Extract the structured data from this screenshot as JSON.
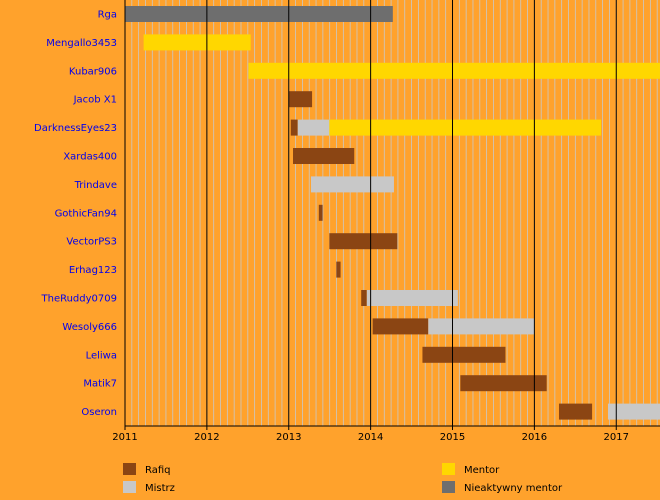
{
  "chart_data": {
    "type": "timeline",
    "title": "",
    "xlabel": "",
    "ylabel": "",
    "x_range": [
      "2011-01-01",
      "2017-07-15"
    ],
    "x_ticks": [
      "2011",
      "2012",
      "2013",
      "2014",
      "2015",
      "2016",
      "2017"
    ],
    "grid": "vertical, monthly minor lines and yearly major lines",
    "legend_position": "bottom",
    "roles": [
      {
        "key": "rafiq",
        "label": "Rafiq",
        "color": "#8B4513"
      },
      {
        "key": "mistrz",
        "label": "Mistrz",
        "color": "#C8C8C8"
      },
      {
        "key": "mentor",
        "label": "Mentor",
        "color": "#FFD700"
      },
      {
        "key": "inactive",
        "label": "Nieaktywny mentor",
        "color": "#6E6E6E"
      }
    ],
    "rows": [
      {
        "name": "Rga",
        "segments": [
          {
            "role": "inactive",
            "start": "2011-01-01",
            "end": "2014-04-10"
          }
        ]
      },
      {
        "name": "Mengallo3453",
        "segments": [
          {
            "role": "mentor",
            "start": "2011-03-25",
            "end": "2012-07-15"
          }
        ]
      },
      {
        "name": "Kubar906",
        "segments": [
          {
            "role": "mentor",
            "start": "2012-07-05",
            "end": "2017-07-15"
          }
        ]
      },
      {
        "name": "Jacob X1",
        "segments": [
          {
            "role": "rafiq",
            "start": "2013-01-01",
            "end": "2013-04-15"
          }
        ]
      },
      {
        "name": "DarknessEyes23",
        "segments": [
          {
            "role": "rafiq",
            "start": "2013-01-10",
            "end": "2013-02-10"
          },
          {
            "role": "mistrz",
            "start": "2013-02-10",
            "end": "2013-07-01"
          },
          {
            "role": "mentor",
            "start": "2013-07-01",
            "end": "2016-10-25"
          }
        ]
      },
      {
        "name": "Xardas400",
        "segments": [
          {
            "role": "rafiq",
            "start": "2013-01-20",
            "end": "2013-10-20"
          }
        ]
      },
      {
        "name": "Trindave",
        "segments": [
          {
            "role": "mistrz",
            "start": "2013-04-10",
            "end": "2014-04-15"
          }
        ]
      },
      {
        "name": "GothicFan94",
        "segments": [
          {
            "role": "rafiq",
            "start": "2013-05-15",
            "end": "2013-06-01"
          }
        ]
      },
      {
        "name": "VectorPS3",
        "segments": [
          {
            "role": "rafiq",
            "start": "2013-07-01",
            "end": "2014-04-30"
          }
        ]
      },
      {
        "name": "Erhag123",
        "segments": [
          {
            "role": "rafiq",
            "start": "2013-08-01",
            "end": "2013-08-20"
          }
        ]
      },
      {
        "name": "TheRuddy0709",
        "segments": [
          {
            "role": "rafiq",
            "start": "2013-11-20",
            "end": "2013-12-15"
          },
          {
            "role": "mistrz",
            "start": "2013-12-15",
            "end": "2015-01-25"
          }
        ]
      },
      {
        "name": "Wesoly666",
        "segments": [
          {
            "role": "rafiq",
            "start": "2014-01-10",
            "end": "2014-09-15"
          },
          {
            "role": "mistrz",
            "start": "2014-09-15",
            "end": "2015-12-31"
          }
        ]
      },
      {
        "name": "Leliwa",
        "segments": [
          {
            "role": "rafiq",
            "start": "2014-08-20",
            "end": "2015-08-25"
          }
        ]
      },
      {
        "name": "Matik7",
        "segments": [
          {
            "role": "rafiq",
            "start": "2015-02-05",
            "end": "2016-02-25"
          }
        ]
      },
      {
        "name": "Oseron",
        "segments": [
          {
            "role": "rafiq",
            "start": "2016-04-20",
            "end": "2016-09-15"
          },
          {
            "role": "mistrz",
            "start": "2016-11-25",
            "end": "2017-07-15"
          }
        ]
      }
    ]
  }
}
